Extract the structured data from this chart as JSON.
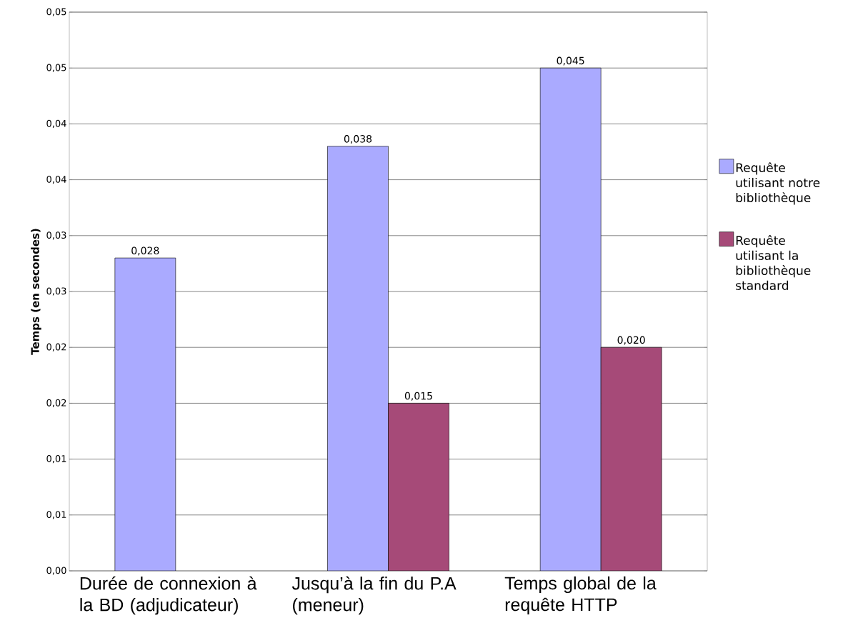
{
  "chart_data": {
    "type": "bar",
    "ylabel": "Temps (en secondes)",
    "categories": [
      "Durée de connexion à la BD (adjudicateur)",
      "Jusqu’à la fin du P.A (meneur)",
      "Temps global de la requête HTTP"
    ],
    "series": [
      {
        "name": "Requête utilisant notre bibliothèque",
        "color": "#aaaaff",
        "values": [
          0.028,
          0.038,
          0.045
        ],
        "value_labels": [
          "0,028",
          "0,038",
          "0,045"
        ]
      },
      {
        "name": "Requête utilisant la bibliothèque standard",
        "color": "#a64a78",
        "values": [
          null,
          0.015,
          0.02
        ],
        "value_labels": [
          null,
          "0,015",
          "0,020"
        ]
      }
    ],
    "ylim": [
      0,
      0.05
    ],
    "yticks": [
      {
        "value": 0,
        "label": "0,00"
      },
      {
        "value": 0.005,
        "label": "0,01"
      },
      {
        "value": 0.01,
        "label": "0,01"
      },
      {
        "value": 0.015,
        "label": "0,02"
      },
      {
        "value": 0.02,
        "label": "0,02"
      },
      {
        "value": 0.025,
        "label": "0,03"
      },
      {
        "value": 0.03,
        "label": "0,03"
      },
      {
        "value": 0.035,
        "label": "0,04"
      },
      {
        "value": 0.04,
        "label": "0,04"
      },
      {
        "value": 0.045,
        "label": "0,05"
      },
      {
        "value": 0.05,
        "label": "0,05"
      }
    ],
    "grid": "y",
    "legend": "right"
  }
}
